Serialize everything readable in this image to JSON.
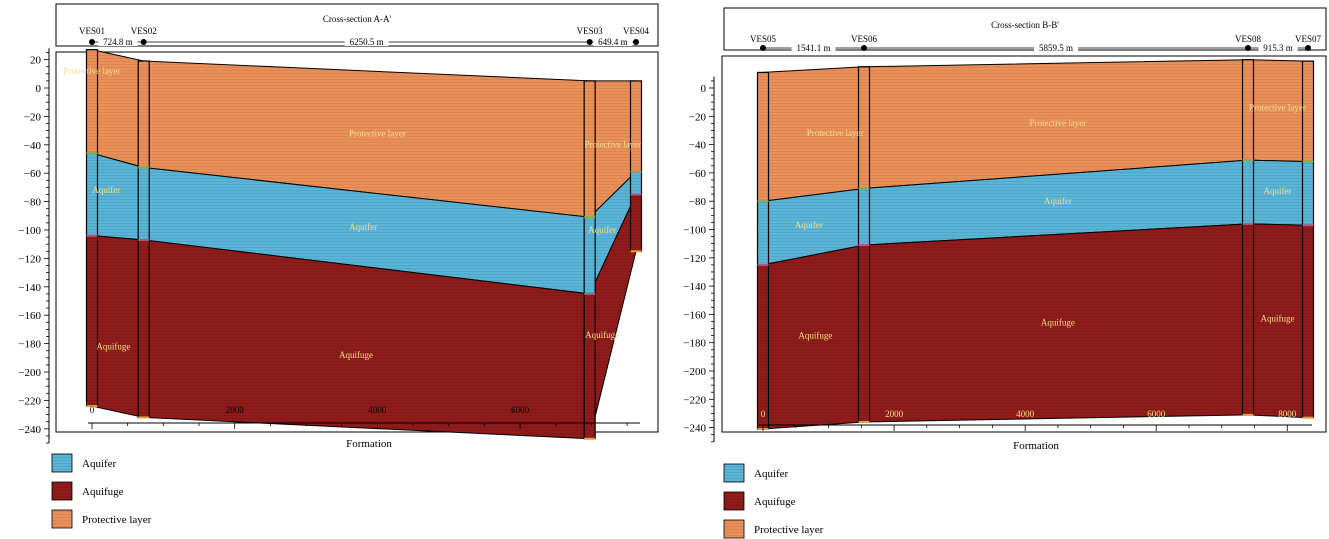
{
  "colors": {
    "aquifer": "#5ab4d6",
    "aquifuge": "#8e1c1a",
    "protective": "#e9905a",
    "label": "#f3e08a",
    "frame": "#000000"
  },
  "sections": [
    {
      "title": "Cross-section A-A'",
      "xlabel": "Formation",
      "legend": [
        "Aquifer",
        "Aquifuge",
        "Protective layer"
      ],
      "wells": [
        {
          "name": "VES01",
          "x": 0
        },
        {
          "name": "VES02",
          "x": 724.8
        },
        {
          "name": "VES03",
          "x": 6975.3
        },
        {
          "name": "VES04",
          "x": 7624.7
        }
      ],
      "distances": [
        "724.8 m",
        "6250.5 m",
        "649.4 m"
      ],
      "tops": [
        27,
        19,
        5,
        5
      ],
      "boundaries": {
        "protective_aquifer": [
          -46,
          -56,
          -91,
          -59
        ],
        "aquifer_aquifuge": [
          -104,
          -107,
          -145,
          -75
        ],
        "bottom": [
          -224,
          -232,
          -247,
          -115
        ]
      },
      "layer_labels": [
        {
          "text": "Protective layer",
          "x": 0,
          "y": 10
        },
        {
          "text": "Protective layer",
          "x": 4000,
          "y": -34
        },
        {
          "text": "Protective layer",
          "x": 7300,
          "y": -42
        },
        {
          "text": "Aquifer",
          "x": 200,
          "y": -74
        },
        {
          "text": "Aquifer",
          "x": 3800,
          "y": -100
        },
        {
          "text": "Aquifer",
          "x": 7150,
          "y": -102
        },
        {
          "text": "Aquifuge",
          "x": 300,
          "y": -184
        },
        {
          "text": "Aquifuge",
          "x": 3700,
          "y": -190
        },
        {
          "text": "Aquifuge",
          "x": 7150,
          "y": -176
        }
      ],
      "x_ticks": [
        "0",
        "2000",
        "4000",
        "6000"
      ],
      "y_ticks": [
        "20",
        "0",
        "−20",
        "−40",
        "−60",
        "−80",
        "−100",
        "−120",
        "−140",
        "−160",
        "−180",
        "−200",
        "−220",
        "−240"
      ]
    },
    {
      "title": "Cross-section B-B'",
      "xlabel": "Formation",
      "legend": [
        "Aquifer",
        "Aquifuge",
        "Protective layer"
      ],
      "wells": [
        {
          "name": "VES05",
          "x": 0
        },
        {
          "name": "VES06",
          "x": 1541.1
        },
        {
          "name": "VES08",
          "x": 7400.6
        },
        {
          "name": "VES07",
          "x": 8315.9
        }
      ],
      "distances": [
        "1541.1 m",
        "5859.5 m",
        "915.3 m"
      ],
      "tops": [
        11,
        15,
        20,
        19
      ],
      "boundaries": {
        "protective_aquifer": [
          -80,
          -71,
          -51,
          -52
        ],
        "aquifer_aquifuge": [
          -125,
          -111,
          -96,
          -97
        ],
        "bottom": [
          -241,
          -236,
          -231,
          -233
        ]
      },
      "layer_labels": [
        {
          "text": "Protective layer",
          "x": 1100,
          "y": -34
        },
        {
          "text": "Protective layer",
          "x": 4500,
          "y": -27
        },
        {
          "text": "Protective layer",
          "x": 7850,
          "y": -16
        },
        {
          "text": "Aquifer",
          "x": 700,
          "y": -99
        },
        {
          "text": "Aquifer",
          "x": 4500,
          "y": -82
        },
        {
          "text": "Aquifer",
          "x": 7850,
          "y": -75
        },
        {
          "text": "Aquifuge",
          "x": 800,
          "y": -177
        },
        {
          "text": "Aquifuge",
          "x": 4500,
          "y": -168
        },
        {
          "text": "Aquifuge",
          "x": 7850,
          "y": -165
        }
      ],
      "x_ticks": [
        "0",
        "2000",
        "4000",
        "6000",
        "8000"
      ],
      "y_ticks": [
        "0",
        "−20",
        "−40",
        "−60",
        "−80",
        "−100",
        "−120",
        "−140",
        "−160",
        "−180",
        "−200",
        "−220",
        "−240"
      ]
    }
  ]
}
